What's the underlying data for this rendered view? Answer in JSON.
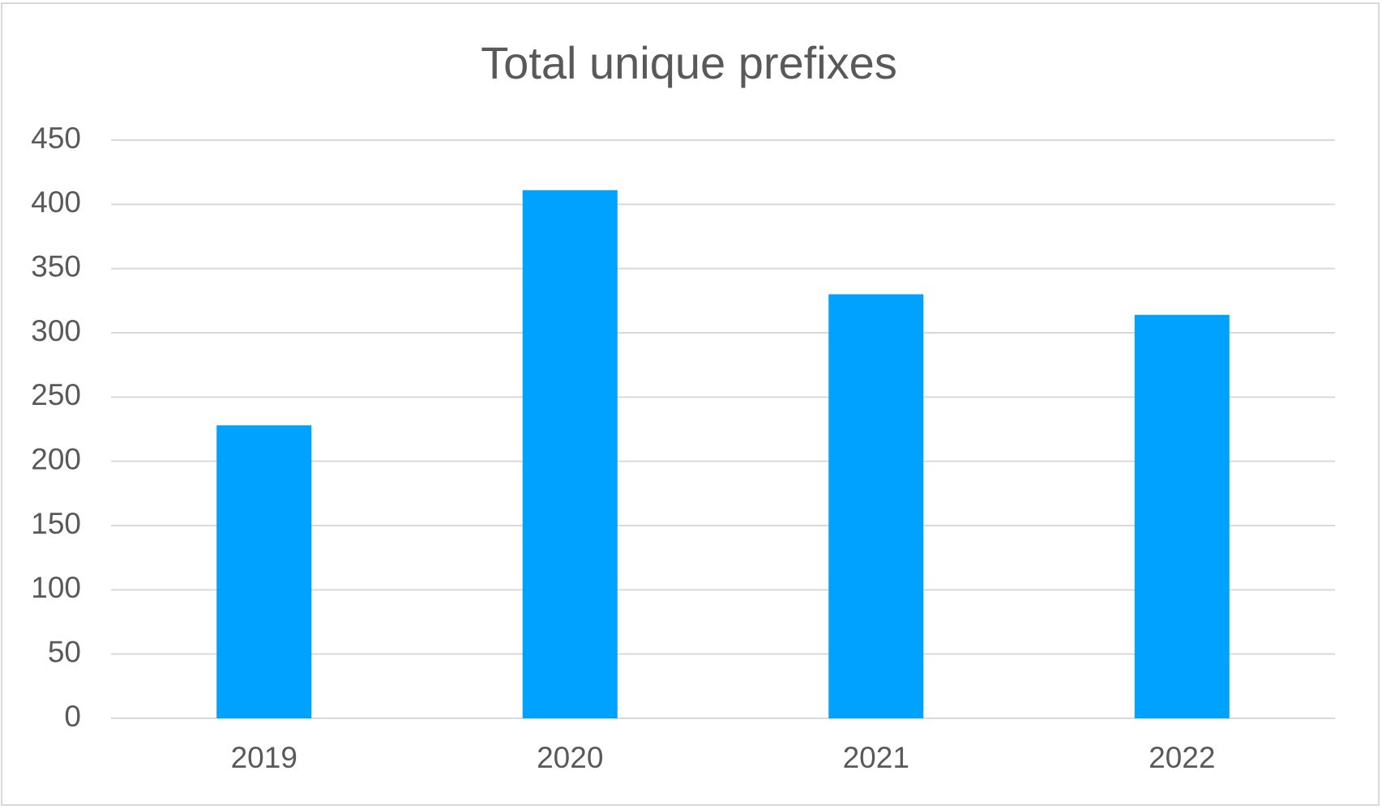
{
  "chart_data": {
    "type": "bar",
    "title": "Total unique prefixes",
    "categories": [
      "2019",
      "2020",
      "2021",
      "2022"
    ],
    "values": [
      228,
      411,
      330,
      314
    ],
    "color": "#00a2ff",
    "ylim": [
      0,
      450
    ],
    "yticks": [
      0,
      50,
      100,
      150,
      200,
      250,
      300,
      350,
      400,
      450
    ],
    "grid": true
  }
}
